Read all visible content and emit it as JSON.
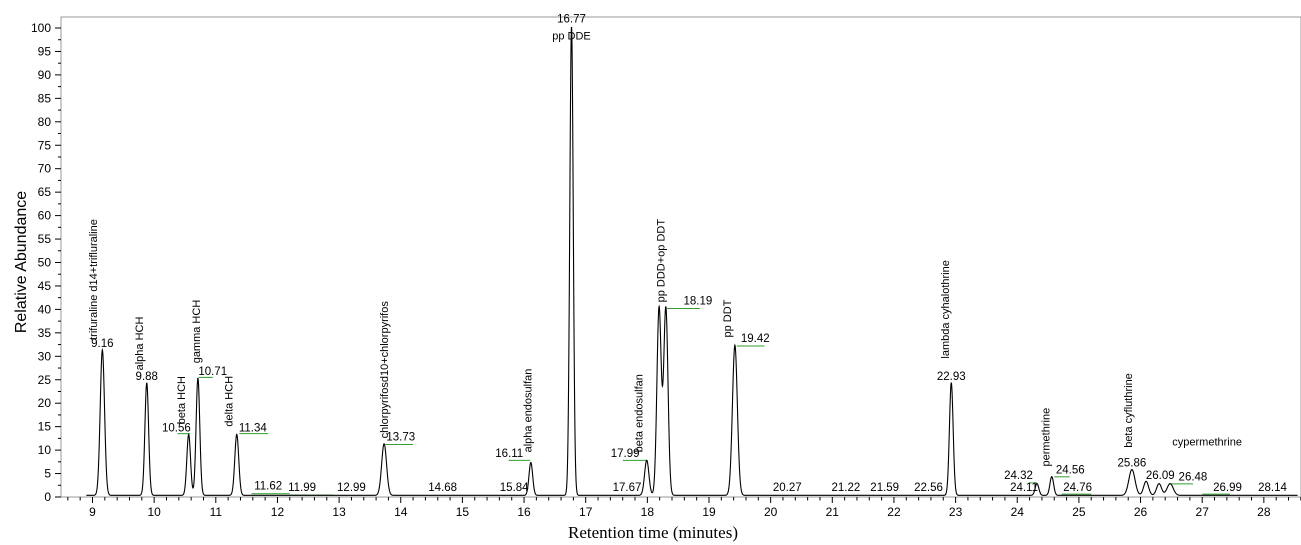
{
  "chart_data": {
    "type": "line",
    "xlabel": "Retention time (minutes)",
    "ylabel": "Relative Abundance",
    "xlim": [
      8.6,
      28.6
    ],
    "ylim": [
      0,
      100
    ],
    "x_ticks": [
      9,
      10,
      11,
      12,
      13,
      14,
      15,
      16,
      17,
      18,
      19,
      20,
      21,
      22,
      23,
      24,
      25,
      26,
      27,
      28
    ],
    "y_ticks": [
      0,
      5,
      10,
      15,
      20,
      25,
      30,
      35,
      40,
      45,
      50,
      55,
      60,
      65,
      70,
      75,
      80,
      85,
      90,
      95,
      100
    ],
    "grid": false,
    "line_color": "#000000",
    "integration_color": "#2e9e2e",
    "peaks": [
      {
        "rt": 9.16,
        "height": 31,
        "width": 0.035
      },
      {
        "rt": 9.88,
        "height": 24,
        "width": 0.03
      },
      {
        "rt": 10.56,
        "height": 13,
        "width": 0.03
      },
      {
        "rt": 10.71,
        "height": 25,
        "width": 0.03
      },
      {
        "rt": 11.34,
        "height": 13,
        "width": 0.032
      },
      {
        "rt": 13.73,
        "height": 11,
        "width": 0.04
      },
      {
        "rt": 16.11,
        "height": 7,
        "width": 0.03
      },
      {
        "rt": 16.77,
        "height": 100,
        "width": 0.028
      },
      {
        "rt": 17.99,
        "height": 7.5,
        "width": 0.035
      },
      {
        "rt": 18.19,
        "height": 40,
        "width": 0.035
      },
      {
        "rt": 18.3,
        "height": 40,
        "width": 0.035
      },
      {
        "rt": 19.42,
        "height": 32,
        "width": 0.04
      },
      {
        "rt": 22.93,
        "height": 24,
        "width": 0.03
      },
      {
        "rt": 24.32,
        "height": 2.5,
        "width": 0.03
      },
      {
        "rt": 24.56,
        "height": 4,
        "width": 0.03
      },
      {
        "rt": 25.86,
        "height": 5.5,
        "width": 0.05
      },
      {
        "rt": 26.09,
        "height": 3,
        "width": 0.04
      },
      {
        "rt": 26.3,
        "height": 2.5,
        "width": 0.04
      },
      {
        "rt": 26.48,
        "height": 2.5,
        "width": 0.05
      }
    ],
    "rt_labels": [
      {
        "text": "9.16",
        "rt": 9.16,
        "y": 32
      },
      {
        "text": "9.88",
        "rt": 9.88,
        "y": 25
      },
      {
        "text": "10.56",
        "rt": 10.36,
        "y": 14
      },
      {
        "text": "10.71",
        "rt": 10.95,
        "y": 26
      },
      {
        "text": "11.34",
        "rt": 11.6,
        "y": 14
      },
      {
        "text": "11.62",
        "rt": 11.85,
        "y": 1.6
      },
      {
        "text": "11.99",
        "rt": 12.4,
        "y": 1.3
      },
      {
        "text": "12.99",
        "rt": 13.2,
        "y": 1.3
      },
      {
        "text": "13.73",
        "rt": 14.0,
        "y": 12
      },
      {
        "text": "14.68",
        "rt": 14.68,
        "y": 1.3
      },
      {
        "text": "15.84",
        "rt": 15.84,
        "y": 1.3
      },
      {
        "text": "16.11",
        "rt": 15.76,
        "y": 8.5
      },
      {
        "text": "16.77",
        "rt": 16.77,
        "y": 101.2
      },
      {
        "text": "17.67",
        "rt": 17.67,
        "y": 1.3
      },
      {
        "text": "17.99",
        "rt": 17.64,
        "y": 8.5
      },
      {
        "text": "18.19",
        "rt": 18.82,
        "y": 41
      },
      {
        "text": "19.42",
        "rt": 19.75,
        "y": 33
      },
      {
        "text": "20.27",
        "rt": 20.27,
        "y": 1.3
      },
      {
        "text": "21.22",
        "rt": 21.22,
        "y": 1.3
      },
      {
        "text": "21.59",
        "rt": 21.85,
        "y": 1.3
      },
      {
        "text": "22.56",
        "rt": 22.56,
        "y": 1.3
      },
      {
        "text": "22.93",
        "rt": 22.93,
        "y": 25
      },
      {
        "text": "24.32",
        "rt": 24.02,
        "y": 3.8
      },
      {
        "text": "24.11",
        "rt": 24.11,
        "y": 1.3
      },
      {
        "text": "24.56",
        "rt": 24.86,
        "y": 5
      },
      {
        "text": "24.76",
        "rt": 24.98,
        "y": 1.3
      },
      {
        "text": "25.86",
        "rt": 25.86,
        "y": 6.5
      },
      {
        "text": "26.09",
        "rt": 26.32,
        "y": 3.8
      },
      {
        "text": "26.48",
        "rt": 26.85,
        "y": 3.5
      },
      {
        "text": "26.99",
        "rt": 27.41,
        "y": 1.3
      },
      {
        "text": "28.14",
        "rt": 28.14,
        "y": 1.3
      }
    ],
    "compound_labels": [
      {
        "text": "trifuraline d14+trifluraline",
        "rt": 9.07,
        "y": 33.5,
        "rotated": true
      },
      {
        "text": "alpha HCH",
        "rt": 9.82,
        "y": 27,
        "rotated": true
      },
      {
        "text": "beta HCH",
        "rt": 10.5,
        "y": 15.5,
        "rotated": true
      },
      {
        "text": "gamma HCH",
        "rt": 10.74,
        "y": 28.5,
        "rotated": true
      },
      {
        "text": "delta HCH",
        "rt": 11.27,
        "y": 15,
        "rotated": true
      },
      {
        "text": "chlorpyrifosd10+chlorpyrifos",
        "rt": 13.79,
        "y": 12.5,
        "rotated": true
      },
      {
        "text": "alpha endosulfan",
        "rt": 16.12,
        "y": 9.5,
        "rotated": true
      },
      {
        "text": "pp DDE",
        "rt": 16.77,
        "y": 97.5,
        "rotated": false
      },
      {
        "text": "beta endosulfan",
        "rt": 17.92,
        "y": 9.5,
        "rotated": true
      },
      {
        "text": "pp DDD+op DDT",
        "rt": 18.28,
        "y": 41.5,
        "rotated": true
      },
      {
        "text": "pp DDT",
        "rt": 19.36,
        "y": 34,
        "rotated": true
      },
      {
        "text": "lambda cyhalothrine",
        "rt": 22.89,
        "y": 29.5,
        "rotated": true
      },
      {
        "text": "permethrine",
        "rt": 24.52,
        "y": 6.5,
        "rotated": true
      },
      {
        "text": "beta cyfluthrine",
        "rt": 25.86,
        "y": 10.5,
        "rotated": true
      },
      {
        "text": "cypermethrine",
        "rt": 27.08,
        "y": 11,
        "rotated": false
      }
    ],
    "integration_marks": [
      {
        "x0": 10.38,
        "x1": 10.58,
        "y": 13.5
      },
      {
        "x0": 10.72,
        "x1": 10.95,
        "y": 25.5
      },
      {
        "x0": 11.38,
        "x1": 11.85,
        "y": 13.5
      },
      {
        "x0": 11.58,
        "x1": 12.2,
        "y": 0.7
      },
      {
        "x0": 12.2,
        "x1": 12.9,
        "y": 0.4
      },
      {
        "x0": 13.75,
        "x1": 14.2,
        "y": 11.2
      },
      {
        "x0": 15.75,
        "x1": 16.1,
        "y": 7.8
      },
      {
        "x0": 17.6,
        "x1": 17.98,
        "y": 7.8
      },
      {
        "x0": 18.32,
        "x1": 18.85,
        "y": 40.2
      },
      {
        "x0": 19.45,
        "x1": 19.9,
        "y": 32.2
      },
      {
        "x0": 24.2,
        "x1": 24.32,
        "y": 3
      },
      {
        "x0": 24.6,
        "x1": 24.85,
        "y": 4.3
      },
      {
        "x0": 24.72,
        "x1": 25.2,
        "y": 0.6
      },
      {
        "x0": 26.5,
        "x1": 26.85,
        "y": 2.8
      },
      {
        "x0": 27.0,
        "x1": 27.45,
        "y": 0.6
      }
    ]
  }
}
